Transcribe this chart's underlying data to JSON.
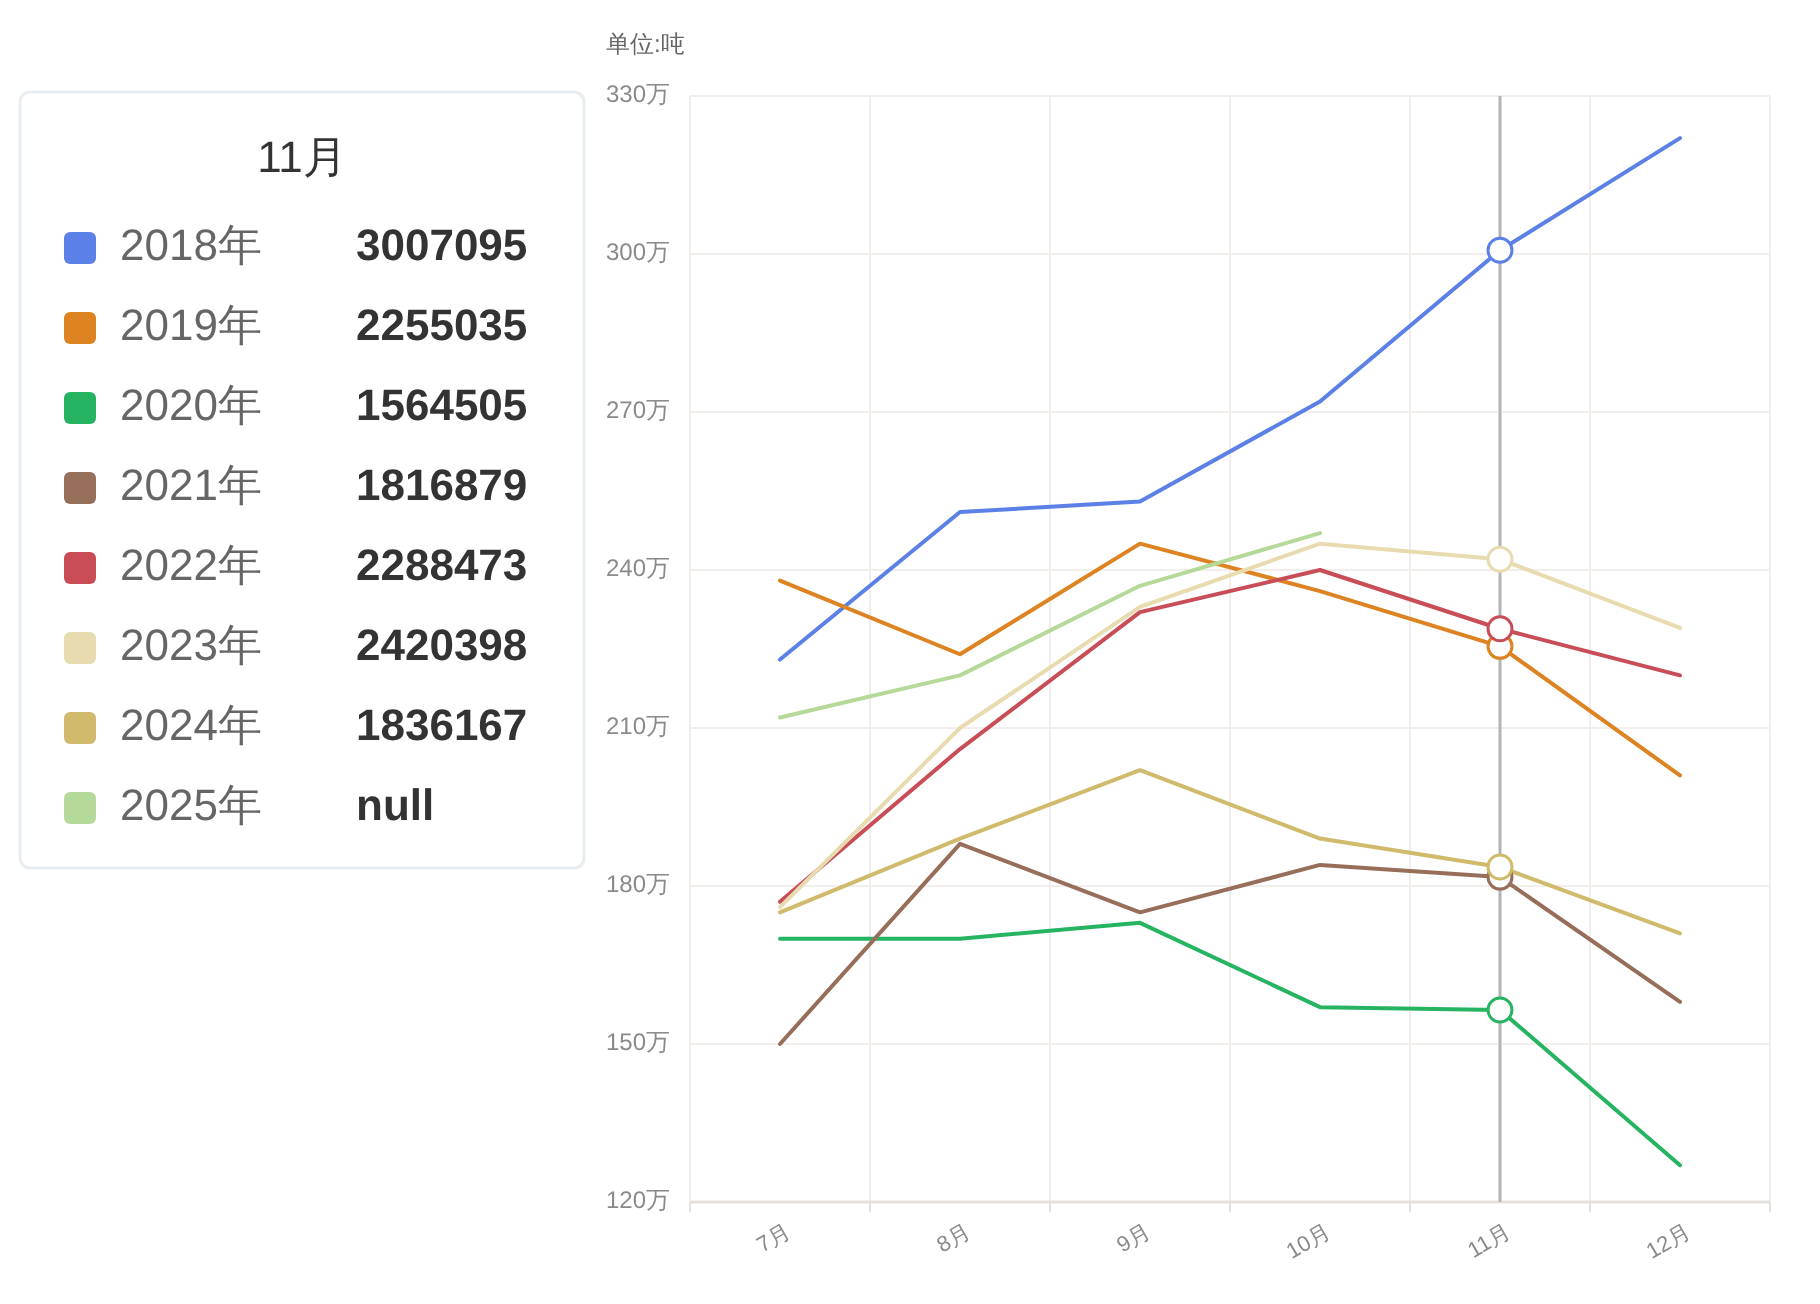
{
  "chart_data": {
    "type": "line",
    "ylabel": "单位:吨",
    "legend_title": "11月",
    "legend": "left",
    "grid": true,
    "categories": [
      "7月",
      "8月",
      "9月",
      "10月",
      "11月",
      "12月"
    ],
    "ylim": [
      120,
      330
    ],
    "yticks": [
      {
        "value": 120,
        "label": "120万"
      },
      {
        "value": 150,
        "label": "150万"
      },
      {
        "value": 180,
        "label": "180万"
      },
      {
        "value": 210,
        "label": "210万"
      },
      {
        "value": 240,
        "label": "240万"
      },
      {
        "value": 270,
        "label": "270万"
      },
      {
        "value": 300,
        "label": "300万"
      },
      {
        "value": 330,
        "label": "330万"
      }
    ],
    "series": [
      {
        "name": "2018年",
        "color": "#5b80e6",
        "values": [
          223,
          251,
          253,
          272,
          300.7095,
          322
        ]
      },
      {
        "name": "2019年",
        "color": "#dd8322",
        "values": [
          238,
          224,
          245,
          236,
          225.5035,
          201
        ]
      },
      {
        "name": "2020年",
        "color": "#26b462",
        "values": [
          170,
          170,
          173,
          157,
          156.4505,
          127
        ]
      },
      {
        "name": "2021年",
        "color": "#966e5a",
        "values": [
          150,
          188,
          175,
          184,
          181.6879,
          158
        ]
      },
      {
        "name": "2022年",
        "color": "#c94d57",
        "values": [
          177,
          206,
          232,
          240,
          228.8473,
          220
        ]
      },
      {
        "name": "2023年",
        "color": "#e8dbb0",
        "values": [
          176,
          210,
          233,
          245,
          242.0398,
          229
        ]
      },
      {
        "name": "2024年",
        "color": "#cfbb6b",
        "values": [
          175,
          189,
          202,
          189,
          183.6167,
          171
        ]
      },
      {
        "name": "2025年",
        "color": "#b5d999",
        "values": [
          212,
          220,
          237,
          247,
          null,
          null
        ]
      },
      {
        "type": "scatter",
        "marker": "circle",
        "color": "#5b80e6",
        "x": [
          "11月"
        ],
        "values": [
          300.7095
        ]
      },
      {
        "type": "scatter",
        "marker": "circle",
        "color": "#dd8322",
        "x": [
          "11月"
        ],
        "values": [
          225.5035
        ]
      },
      {
        "type": "scatter",
        "marker": "circle",
        "color": "#26b462",
        "x": [
          "11月"
        ],
        "values": [
          156.4505
        ]
      },
      {
        "type": "scatter",
        "marker": "circle",
        "color": "#966e5a",
        "x": [
          "11月"
        ],
        "values": [
          181.6879
        ]
      },
      {
        "type": "scatter",
        "marker": "circle",
        "color": "#c94d57",
        "x": [
          "11月"
        ],
        "values": [
          228.8473
        ]
      },
      {
        "type": "scatter",
        "marker": "circle",
        "color": "#e8dbb0",
        "x": [
          "11月"
        ],
        "values": [
          242.0398
        ]
      },
      {
        "type": "scatter",
        "marker": "circle",
        "color": "#cfbb6b",
        "x": [
          "11月"
        ],
        "values": [
          183.6167
        ]
      }
    ],
    "ref_lines": [
      {
        "axis": "x",
        "value": "11月",
        "color": "#b3b3b3"
      }
    ],
    "annotations": [
      "3007095",
      "2255035",
      "1564505",
      "1816879",
      "2288473",
      "2420398",
      "1836167",
      "null"
    ]
  }
}
